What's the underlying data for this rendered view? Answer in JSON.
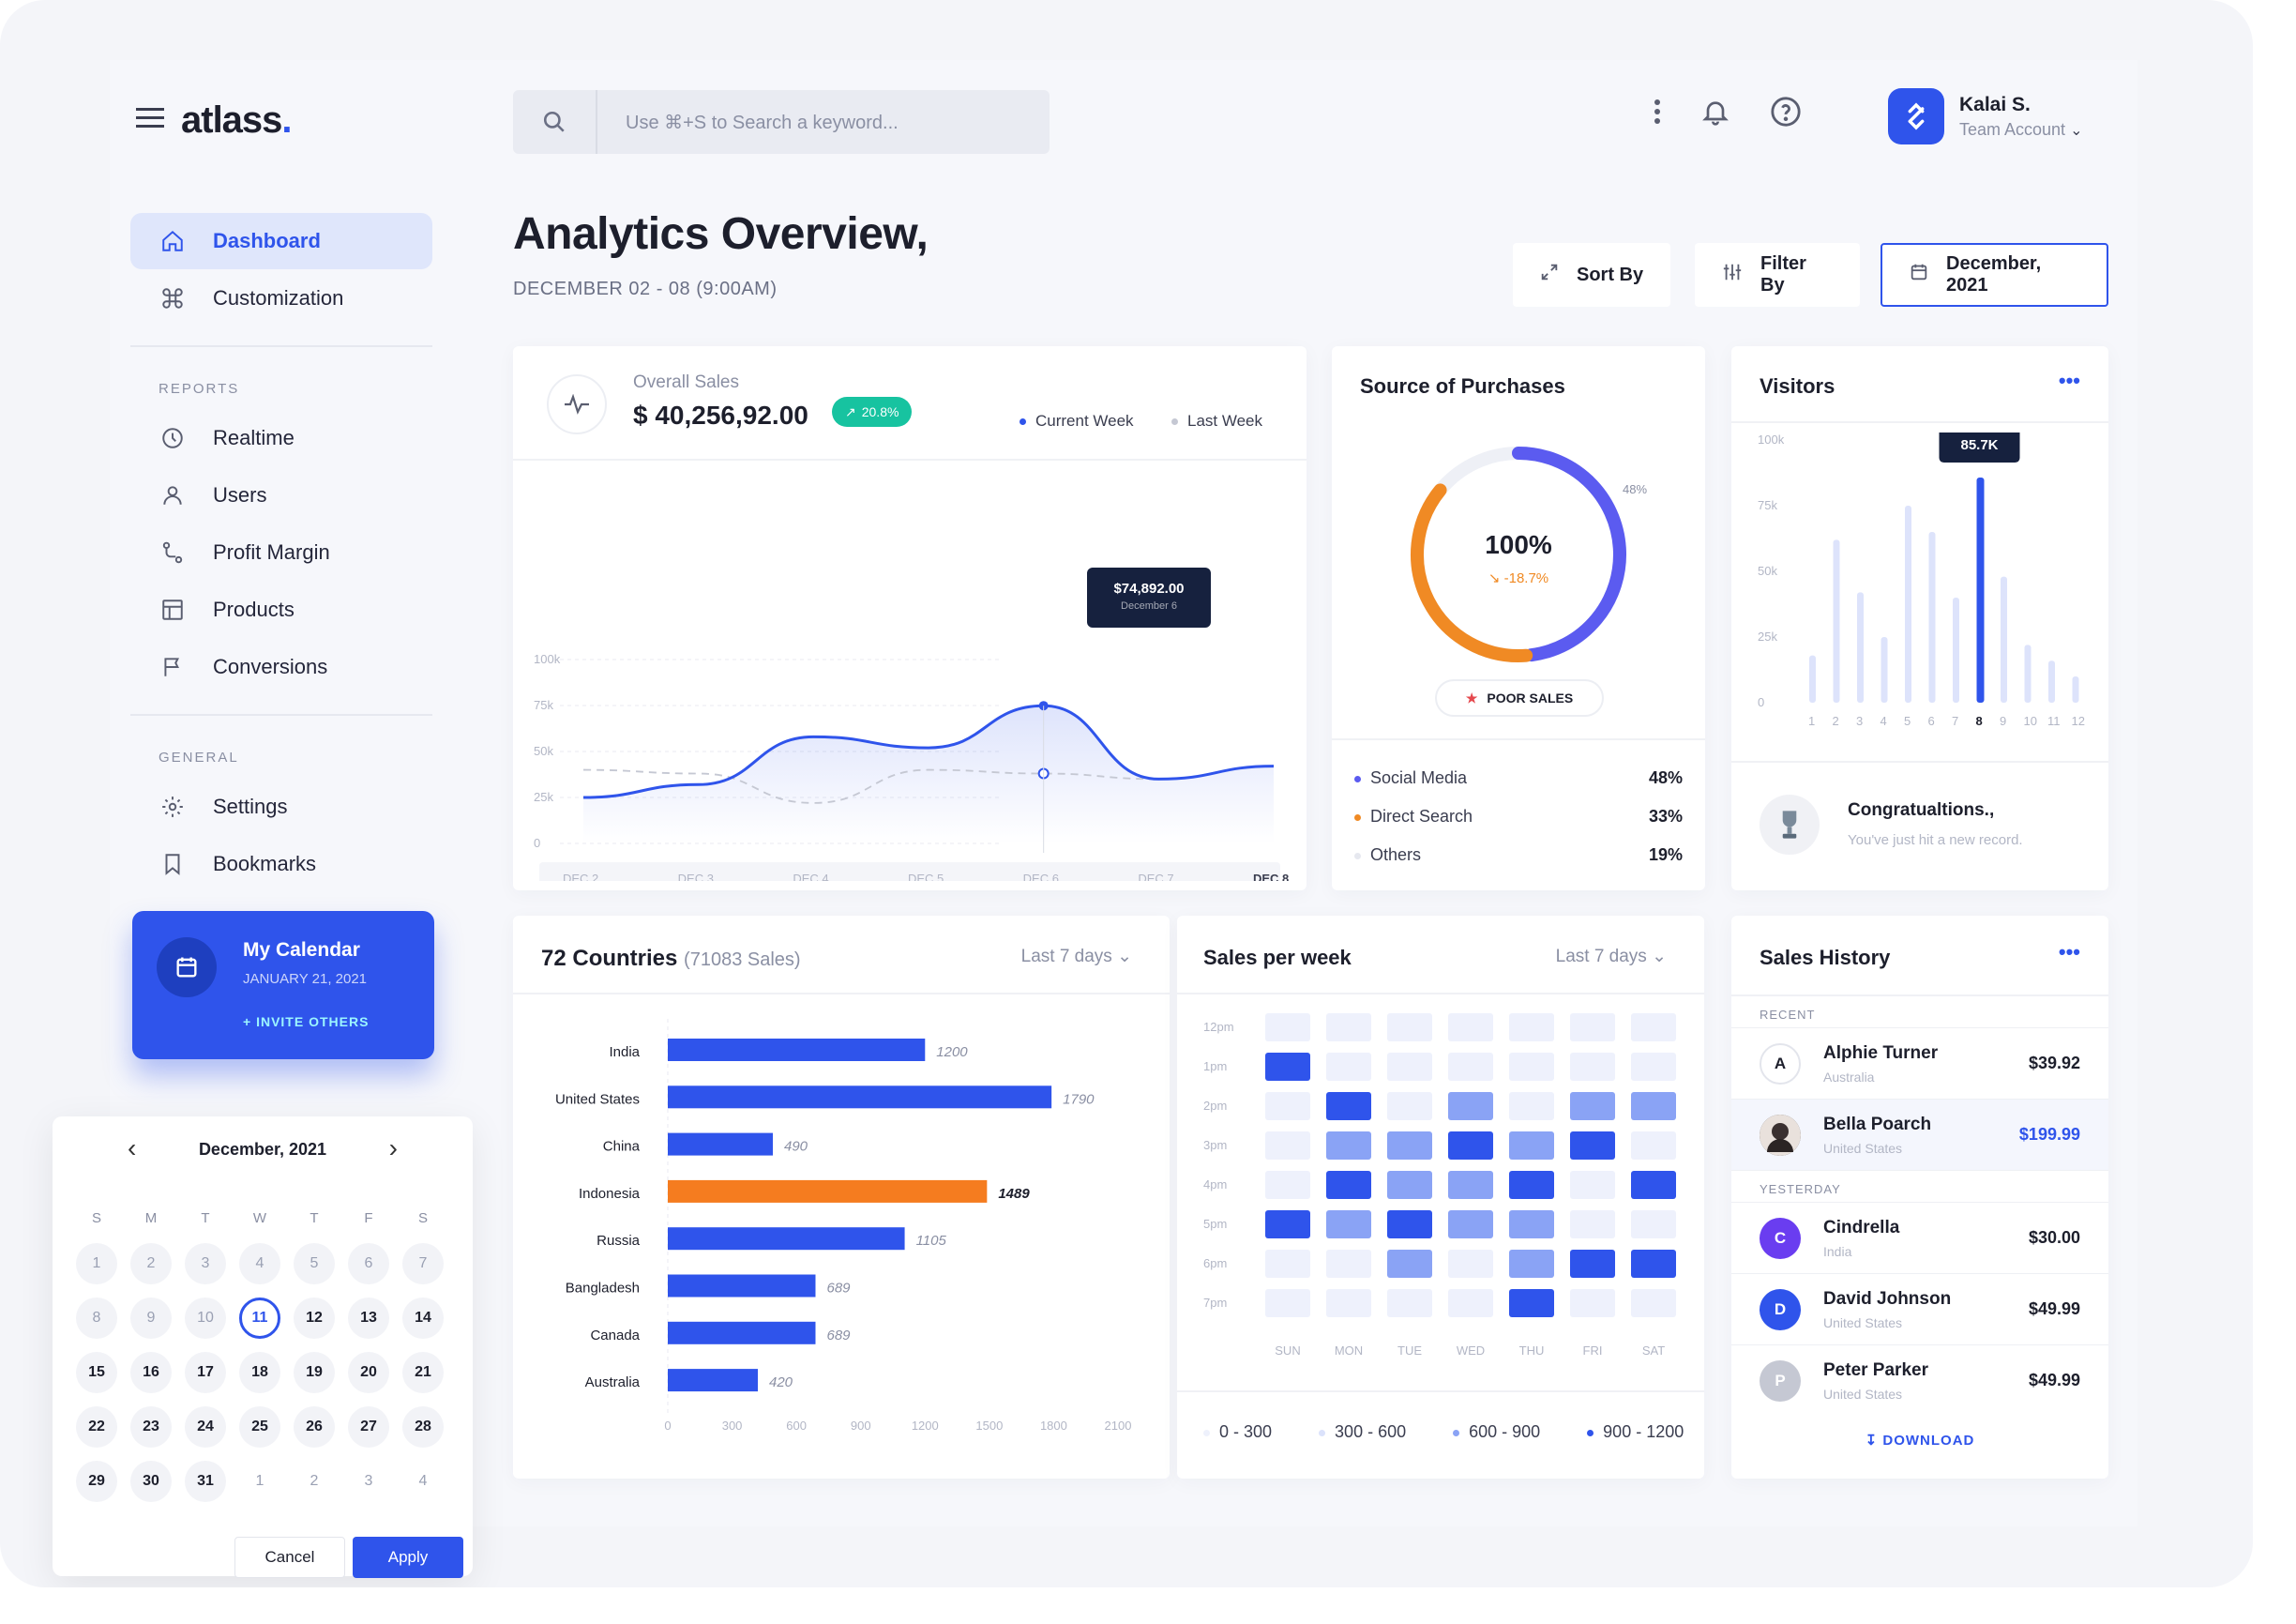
{
  "brand": {
    "name": "atlass",
    "dot": "."
  },
  "search": {
    "placeholder": "Use ⌘+S to Search a keyword..."
  },
  "user": {
    "name": "Kalai S.",
    "role": "Team Account"
  },
  "nav": {
    "main": [
      {
        "label": "Dashboard",
        "icon": "home-icon",
        "active": true
      },
      {
        "label": "Customization",
        "icon": "command-icon"
      }
    ],
    "reports_label": "REPORTS",
    "reports": [
      {
        "label": "Realtime",
        "icon": "clock-icon"
      },
      {
        "label": "Users",
        "icon": "user-icon"
      },
      {
        "label": "Profit Margin",
        "icon": "route-icon"
      },
      {
        "label": "Products",
        "icon": "layout-icon"
      },
      {
        "label": "Conversions",
        "icon": "flag-icon"
      }
    ],
    "general_label": "GENERAL",
    "general": [
      {
        "label": "Settings",
        "icon": "gear-icon"
      },
      {
        "label": "Bookmarks",
        "icon": "bookmark-icon"
      }
    ]
  },
  "calendar_card": {
    "title": "My Calendar",
    "date": "JANUARY 21, 2021",
    "invite": "+ INVITE OTHERS"
  },
  "datepicker": {
    "month": "December, 2021",
    "weekdays": [
      "S",
      "M",
      "T",
      "W",
      "T",
      "F",
      "S"
    ],
    "days": [
      [
        "1",
        "m"
      ],
      [
        "2",
        "m"
      ],
      [
        "3",
        "m"
      ],
      [
        "4",
        "m"
      ],
      [
        "5",
        "m"
      ],
      [
        "6",
        "m"
      ],
      [
        "7",
        "m"
      ],
      [
        "8",
        "m"
      ],
      [
        "9",
        "m"
      ],
      [
        "10",
        "m"
      ],
      [
        "11",
        "sel"
      ],
      [
        "12",
        ""
      ],
      [
        "13",
        ""
      ],
      [
        "14",
        ""
      ],
      [
        "15",
        ""
      ],
      [
        "16",
        ""
      ],
      [
        "17",
        ""
      ],
      [
        "18",
        ""
      ],
      [
        "19",
        ""
      ],
      [
        "20",
        ""
      ],
      [
        "21",
        ""
      ],
      [
        "22",
        ""
      ],
      [
        "23",
        ""
      ],
      [
        "24",
        ""
      ],
      [
        "25",
        ""
      ],
      [
        "26",
        ""
      ],
      [
        "27",
        ""
      ],
      [
        "28",
        ""
      ],
      [
        "29",
        ""
      ],
      [
        "30",
        ""
      ],
      [
        "31",
        ""
      ],
      [
        "1",
        "p"
      ],
      [
        "2",
        "p"
      ],
      [
        "3",
        "p"
      ],
      [
        "4",
        "p"
      ]
    ],
    "cancel": "Cancel",
    "apply": "Apply"
  },
  "page": {
    "title": "Analytics Overview,",
    "subtitle": "DECEMBER 02 - 08 (9:00AM)"
  },
  "toolbar": {
    "sort": "Sort By",
    "filter": "Filter By",
    "date": "December, 2021"
  },
  "overall": {
    "label": "Overall Sales",
    "value": "$ 40,256,92.00",
    "badge": "20.8%",
    "legend": [
      "Current Week",
      "Last Week"
    ],
    "tooltip_value": "$74,892.00",
    "tooltip_date": "December 6",
    "y_ticks": [
      "100k",
      "75k",
      "50k",
      "25k",
      "0"
    ],
    "x_ticks": [
      "DEC 2",
      "DEC 3",
      "DEC 4",
      "DEC 5",
      "DEC 6",
      "DEC 7",
      "DEC 8"
    ]
  },
  "source": {
    "title": "Source of Purchases",
    "center": "100%",
    "change": "-18.7%",
    "slice_label": "48%",
    "status": "POOR SALES",
    "rows": [
      {
        "label": "Social Media",
        "value": "48%",
        "color": "#5b5bf0"
      },
      {
        "label": "Direct Search",
        "value": "33%",
        "color": "#f08a24"
      },
      {
        "label": "Others",
        "value": "19%",
        "color": "#e6e8ef"
      }
    ]
  },
  "visitors": {
    "title": "Visitors",
    "tooltip": "85.7K",
    "y_ticks": [
      "100k",
      "75k",
      "50k",
      "25k",
      "0"
    ],
    "congrats": "Congratualtions.,",
    "congrats_sub": "You've just hit a new record."
  },
  "countries": {
    "title": "72 Countries",
    "sub": "(71083 Sales)",
    "range": "Last 7 days"
  },
  "sales_week": {
    "title": "Sales per week",
    "range": "Last 7 days",
    "hours": [
      "12pm",
      "1pm",
      "2pm",
      "3pm",
      "4pm",
      "5pm",
      "6pm",
      "7pm"
    ],
    "days": [
      "SUN",
      "MON",
      "TUE",
      "WED",
      "THU",
      "FRI",
      "SAT"
    ],
    "levels": [
      [
        0,
        0,
        0,
        0,
        0,
        0,
        0
      ],
      [
        3,
        0,
        0,
        0,
        0,
        0,
        0
      ],
      [
        0,
        3,
        0,
        2,
        0,
        2,
        2
      ],
      [
        0,
        2,
        2,
        3,
        2,
        3,
        0
      ],
      [
        0,
        3,
        2,
        2,
        3,
        0,
        3
      ],
      [
        3,
        2,
        3,
        2,
        2,
        0,
        0
      ],
      [
        0,
        0,
        2,
        0,
        2,
        3,
        3
      ],
      [
        0,
        0,
        0,
        0,
        3,
        0,
        0
      ]
    ],
    "legend": [
      "0 - 300",
      "300 - 600",
      "600 - 900",
      "900 - 1200"
    ]
  },
  "history": {
    "title": "Sales History",
    "recent": "RECENT",
    "yesterday": "YESTERDAY",
    "download": "DOWNLOAD",
    "recent_items": [
      {
        "initial": "A",
        "name": "Alphie Turner",
        "country": "Australia",
        "amount": "$39.92",
        "color": "#ffffff",
        "highlight": false
      },
      {
        "initial": "",
        "name": "Bella Poarch",
        "country": "United States",
        "amount": "$199.99",
        "color": "#3a3a3a",
        "highlight": true
      }
    ],
    "yesterday_items": [
      {
        "initial": "C",
        "name": "Cindrella",
        "country": "India",
        "amount": "$30.00",
        "color": "#6a3df0"
      },
      {
        "initial": "D",
        "name": "David Johnson",
        "country": "United States",
        "amount": "$49.99",
        "color": "#2f54eb"
      },
      {
        "initial": "P",
        "name": "Peter Parker",
        "country": "United States",
        "amount": "$49.99",
        "color": "#c5c8d3"
      }
    ]
  },
  "chart_data": [
    {
      "type": "line",
      "title": "Overall Sales",
      "x": [
        "DEC 2",
        "DEC 3",
        "DEC 4",
        "DEC 5",
        "DEC 6",
        "DEC 7",
        "DEC 8"
      ],
      "ylim": [
        0,
        100000
      ],
      "series": [
        {
          "name": "Current Week",
          "values": [
            25000,
            32000,
            58000,
            52000,
            74892,
            35000,
            42000
          ]
        },
        {
          "name": "Last Week",
          "values": [
            40000,
            38000,
            22000,
            40000,
            38000,
            35000,
            42000
          ]
        }
      ]
    },
    {
      "type": "pie",
      "title": "Source of Purchases",
      "categories": [
        "Social Media",
        "Direct Search",
        "Others"
      ],
      "values": [
        48,
        33,
        19
      ]
    },
    {
      "type": "bar",
      "title": "Visitors",
      "categories": [
        "1",
        "2",
        "3",
        "4",
        "5",
        "6",
        "7",
        "8",
        "9",
        "10",
        "11",
        "12"
      ],
      "ylim": [
        0,
        100000
      ],
      "values": [
        18000,
        62000,
        42000,
        25000,
        75000,
        65000,
        40000,
        85700,
        48000,
        22000,
        16000,
        10000
      ]
    },
    {
      "type": "bar",
      "title": "72 Countries",
      "categories": [
        "India",
        "United States",
        "China",
        "Indonesia",
        "Russia",
        "Bangladesh",
        "Canada",
        "Australia"
      ],
      "values": [
        1200,
        1790,
        490,
        1489,
        1105,
        689,
        689,
        420
      ],
      "xlim": [
        0,
        2100
      ],
      "x_ticks": [
        "0",
        "300",
        "600",
        "900",
        "1200",
        "1500",
        "1800",
        "2100"
      ],
      "highlight": "Indonesia"
    },
    {
      "type": "heatmap",
      "title": "Sales per week"
    }
  ]
}
